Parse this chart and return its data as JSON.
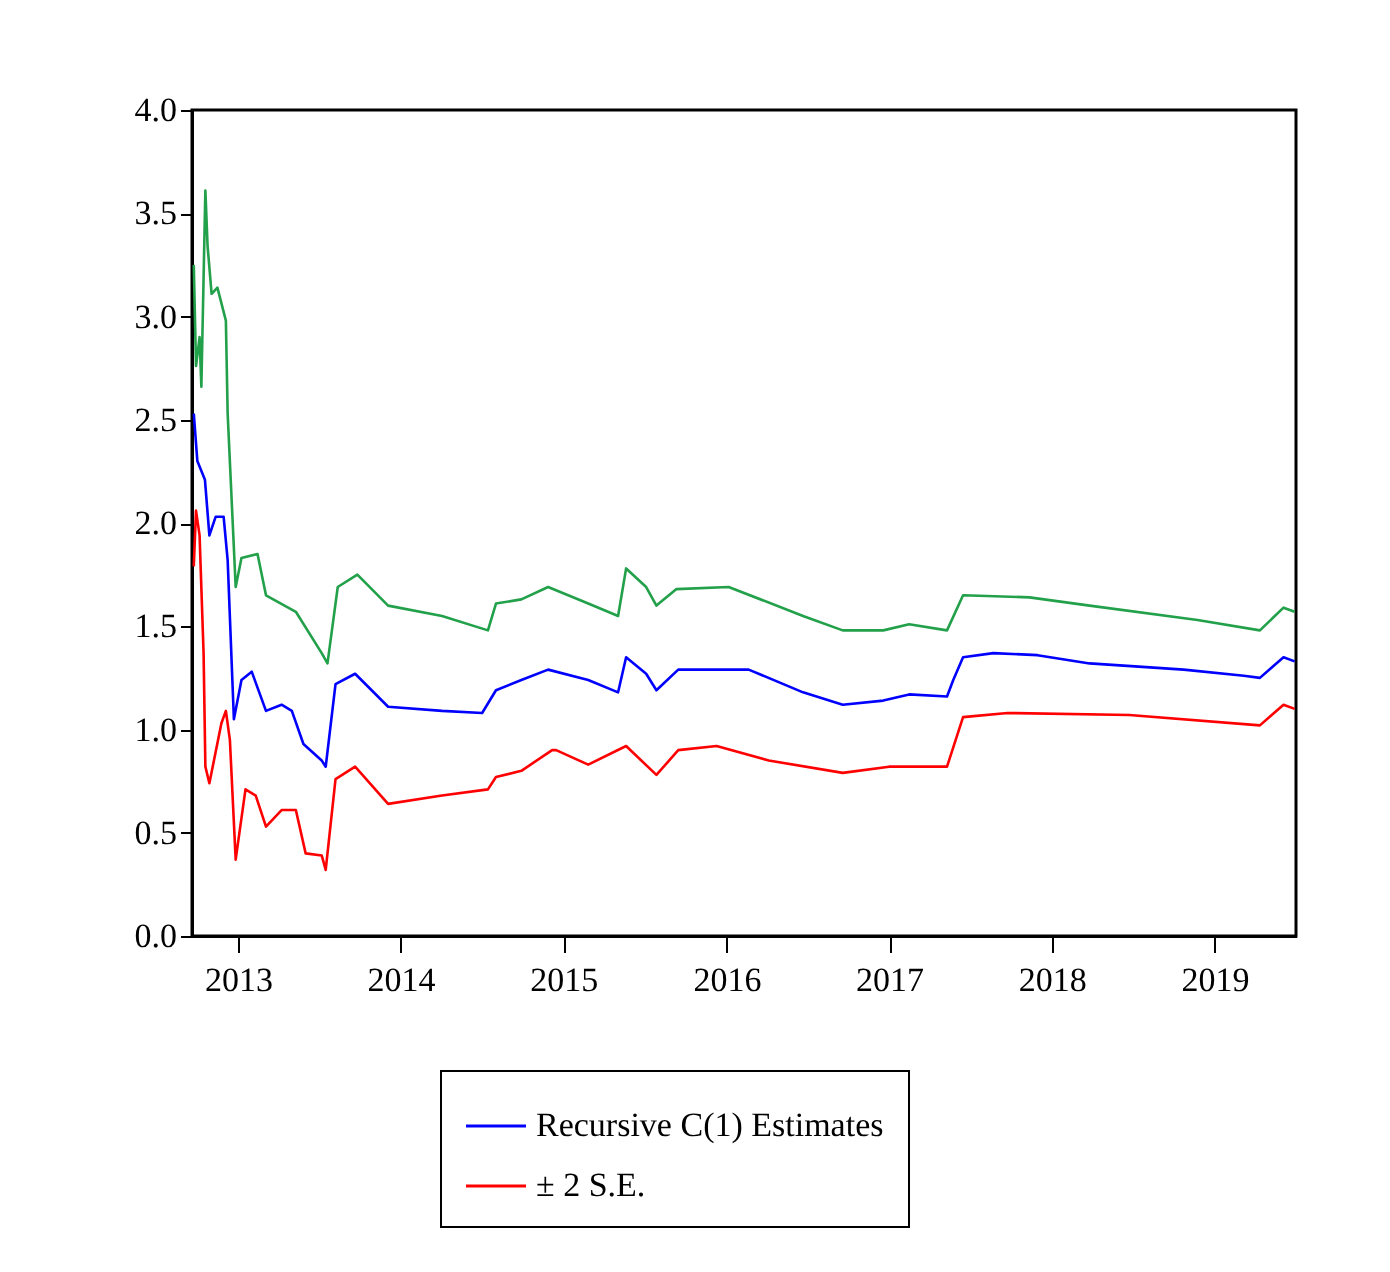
{
  "chart_data": {
    "type": "line",
    "legend": "bottom",
    "grid": false,
    "marker": "none",
    "line_style": "solid",
    "xlim": [
      "2013-03-20",
      "2019-12-31"
    ],
    "xticks": [
      {
        "value": "2013-07-01",
        "label": "2013"
      },
      {
        "value": "2014-07-01",
        "label": "2014"
      },
      {
        "value": "2015-07-01",
        "label": "2015"
      },
      {
        "value": "2016-07-01",
        "label": "2016"
      },
      {
        "value": "2017-07-01",
        "label": "2017"
      },
      {
        "value": "2018-07-01",
        "label": "2018"
      },
      {
        "value": "2019-07-01",
        "label": "2019"
      }
    ],
    "ylim": [
      0,
      4
    ],
    "yticks": [
      {
        "value": 0,
        "label": "0.0"
      },
      {
        "value": 0.5,
        "label": "0.5"
      },
      {
        "value": 1,
        "label": "1.0"
      },
      {
        "value": 1.5,
        "label": "1.5"
      },
      {
        "value": 2,
        "label": "2.0"
      },
      {
        "value": 2.5,
        "label": "2.5"
      },
      {
        "value": 3,
        "label": "3.0"
      },
      {
        "value": 3.5,
        "label": "3.5"
      },
      {
        "value": 4,
        "label": "4.0"
      }
    ],
    "series": [
      {
        "name": "Recursive C(1) Estimates",
        "color": "#0000ff",
        "x": [
          "2013-03-24",
          "2013-04-01",
          "2013-04-18",
          "2013-04-28",
          "2013-05-12",
          "2013-05-30",
          "2013-06-08",
          "2013-06-22",
          "2013-07-09",
          "2013-08-01",
          "2013-09-02",
          "2013-10-07",
          "2013-10-30",
          "2013-11-25",
          "2014-01-05",
          "2014-01-14",
          "2014-02-05",
          "2014-03-21",
          "2014-06-03",
          "2014-10-02",
          "2014-12-31",
          "2015-01-31",
          "2015-03-29",
          "2015-05-28",
          "2015-08-26",
          "2015-11-01",
          "2015-11-19",
          "2016-01-03",
          "2016-01-26",
          "2016-03-15",
          "2016-08-20",
          "2016-12-20",
          "2017-03-19",
          "2017-06-18",
          "2017-08-15",
          "2017-11-08",
          "2017-11-22",
          "2017-12-14",
          "2018-02-20",
          "2018-05-30",
          "2018-09-24",
          "2019-04-23",
          "2019-09-05",
          "2019-10-11",
          "2019-12-03",
          "2019-12-28"
        ],
        "values": [
          2.53,
          2.3,
          2.21,
          1.94,
          2.03,
          2.03,
          1.82,
          1.05,
          1.24,
          1.28,
          1.09,
          1.12,
          1.09,
          0.93,
          0.85,
          0.82,
          1.22,
          1.27,
          1.11,
          1.09,
          1.08,
          1.19,
          1.24,
          1.29,
          1.24,
          1.18,
          1.35,
          1.27,
          1.19,
          1.29,
          1.29,
          1.18,
          1.12,
          1.14,
          1.17,
          1.16,
          1.24,
          1.35,
          1.37,
          1.36,
          1.32,
          1.29,
          1.26,
          1.25,
          1.35,
          1.33
        ]
      },
      {
        "name": "± 2 S.E.",
        "color": "#ff0000",
        "x": [
          "2013-03-24",
          "2013-03-29",
          "2013-04-06",
          "2013-04-15",
          "2013-04-19",
          "2013-04-28",
          "2013-05-25",
          "2013-06-04",
          "2013-06-13",
          "2013-06-26",
          "2013-07-18",
          "2013-08-10",
          "2013-09-02",
          "2013-10-07",
          "2013-11-08",
          "2013-11-30",
          "2014-01-05",
          "2014-01-14",
          "2014-02-05",
          "2014-03-21",
          "2014-06-03",
          "2014-10-02",
          "2015-01-13",
          "2015-01-31",
          "2015-03-29",
          "2015-06-06",
          "2015-06-15",
          "2015-08-26",
          "2015-11-19",
          "2016-01-26",
          "2016-03-15",
          "2016-06-09",
          "2016-10-04",
          "2017-03-19",
          "2017-07-01",
          "2017-11-08",
          "2017-12-14",
          "2018-03-24",
          "2018-12-22",
          "2019-10-11",
          "2019-12-03",
          "2019-12-28"
        ],
        "values": [
          1.79,
          2.06,
          1.94,
          1.37,
          0.82,
          0.74,
          1.03,
          1.09,
          0.95,
          0.37,
          0.71,
          0.68,
          0.53,
          0.61,
          0.61,
          0.4,
          0.39,
          0.32,
          0.76,
          0.82,
          0.64,
          0.68,
          0.71,
          0.77,
          0.8,
          0.9,
          0.9,
          0.83,
          0.92,
          0.78,
          0.9,
          0.92,
          0.85,
          0.79,
          0.82,
          0.82,
          1.06,
          1.08,
          1.07,
          1.02,
          1.12,
          1.1
        ]
      },
      {
        "color": "#22a04a",
        "x": [
          "2013-03-24",
          "2013-03-29",
          "2013-04-06",
          "2013-04-10",
          "2013-04-19",
          "2013-04-24",
          "2013-05-03",
          "2013-05-16",
          "2013-06-04",
          "2013-06-08",
          "2013-06-26",
          "2013-07-09",
          "2013-08-14",
          "2013-09-02",
          "2013-11-08",
          "2014-01-05",
          "2014-01-18",
          "2014-02-10",
          "2014-03-26",
          "2014-06-03",
          "2014-10-02",
          "2015-01-13",
          "2015-01-31",
          "2015-03-29",
          "2015-05-28",
          "2015-08-26",
          "2015-11-01",
          "2015-11-19",
          "2016-01-03",
          "2016-01-26",
          "2016-03-11",
          "2016-07-06",
          "2016-12-20",
          "2017-03-19",
          "2017-06-18",
          "2017-08-15",
          "2017-11-08",
          "2017-12-14",
          "2018-05-12",
          "2018-09-24",
          "2019-05-24",
          "2019-10-11",
          "2019-12-03",
          "2019-12-28"
        ],
        "values": [
          3.25,
          2.76,
          2.9,
          2.66,
          3.61,
          3.34,
          3.11,
          3.14,
          2.98,
          2.53,
          1.69,
          1.83,
          1.85,
          1.65,
          1.57,
          1.37,
          1.32,
          1.69,
          1.75,
          1.6,
          1.55,
          1.48,
          1.61,
          1.63,
          1.69,
          1.61,
          1.55,
          1.78,
          1.69,
          1.6,
          1.68,
          1.69,
          1.55,
          1.48,
          1.48,
          1.51,
          1.48,
          1.65,
          1.64,
          1.6,
          1.53,
          1.48,
          1.59,
          1.57
        ]
      }
    ]
  }
}
